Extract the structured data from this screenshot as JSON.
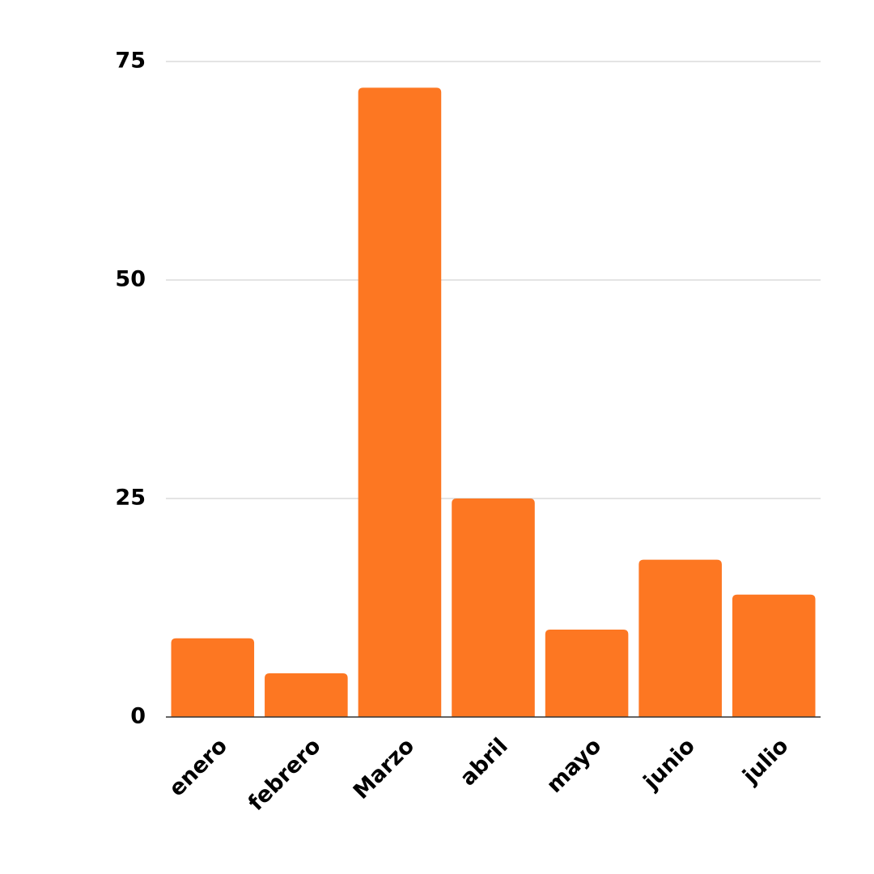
{
  "chart_data": {
    "type": "bar",
    "categories": [
      "enero",
      "febrero",
      "Marzo",
      "abril",
      "mayo",
      "junio",
      "julio"
    ],
    "values": [
      9,
      5,
      72,
      25,
      10,
      18,
      14
    ],
    "color": "#fd7722",
    "ylim": [
      0,
      75
    ],
    "yticks": [
      0,
      25,
      50,
      75
    ],
    "grid": true
  }
}
